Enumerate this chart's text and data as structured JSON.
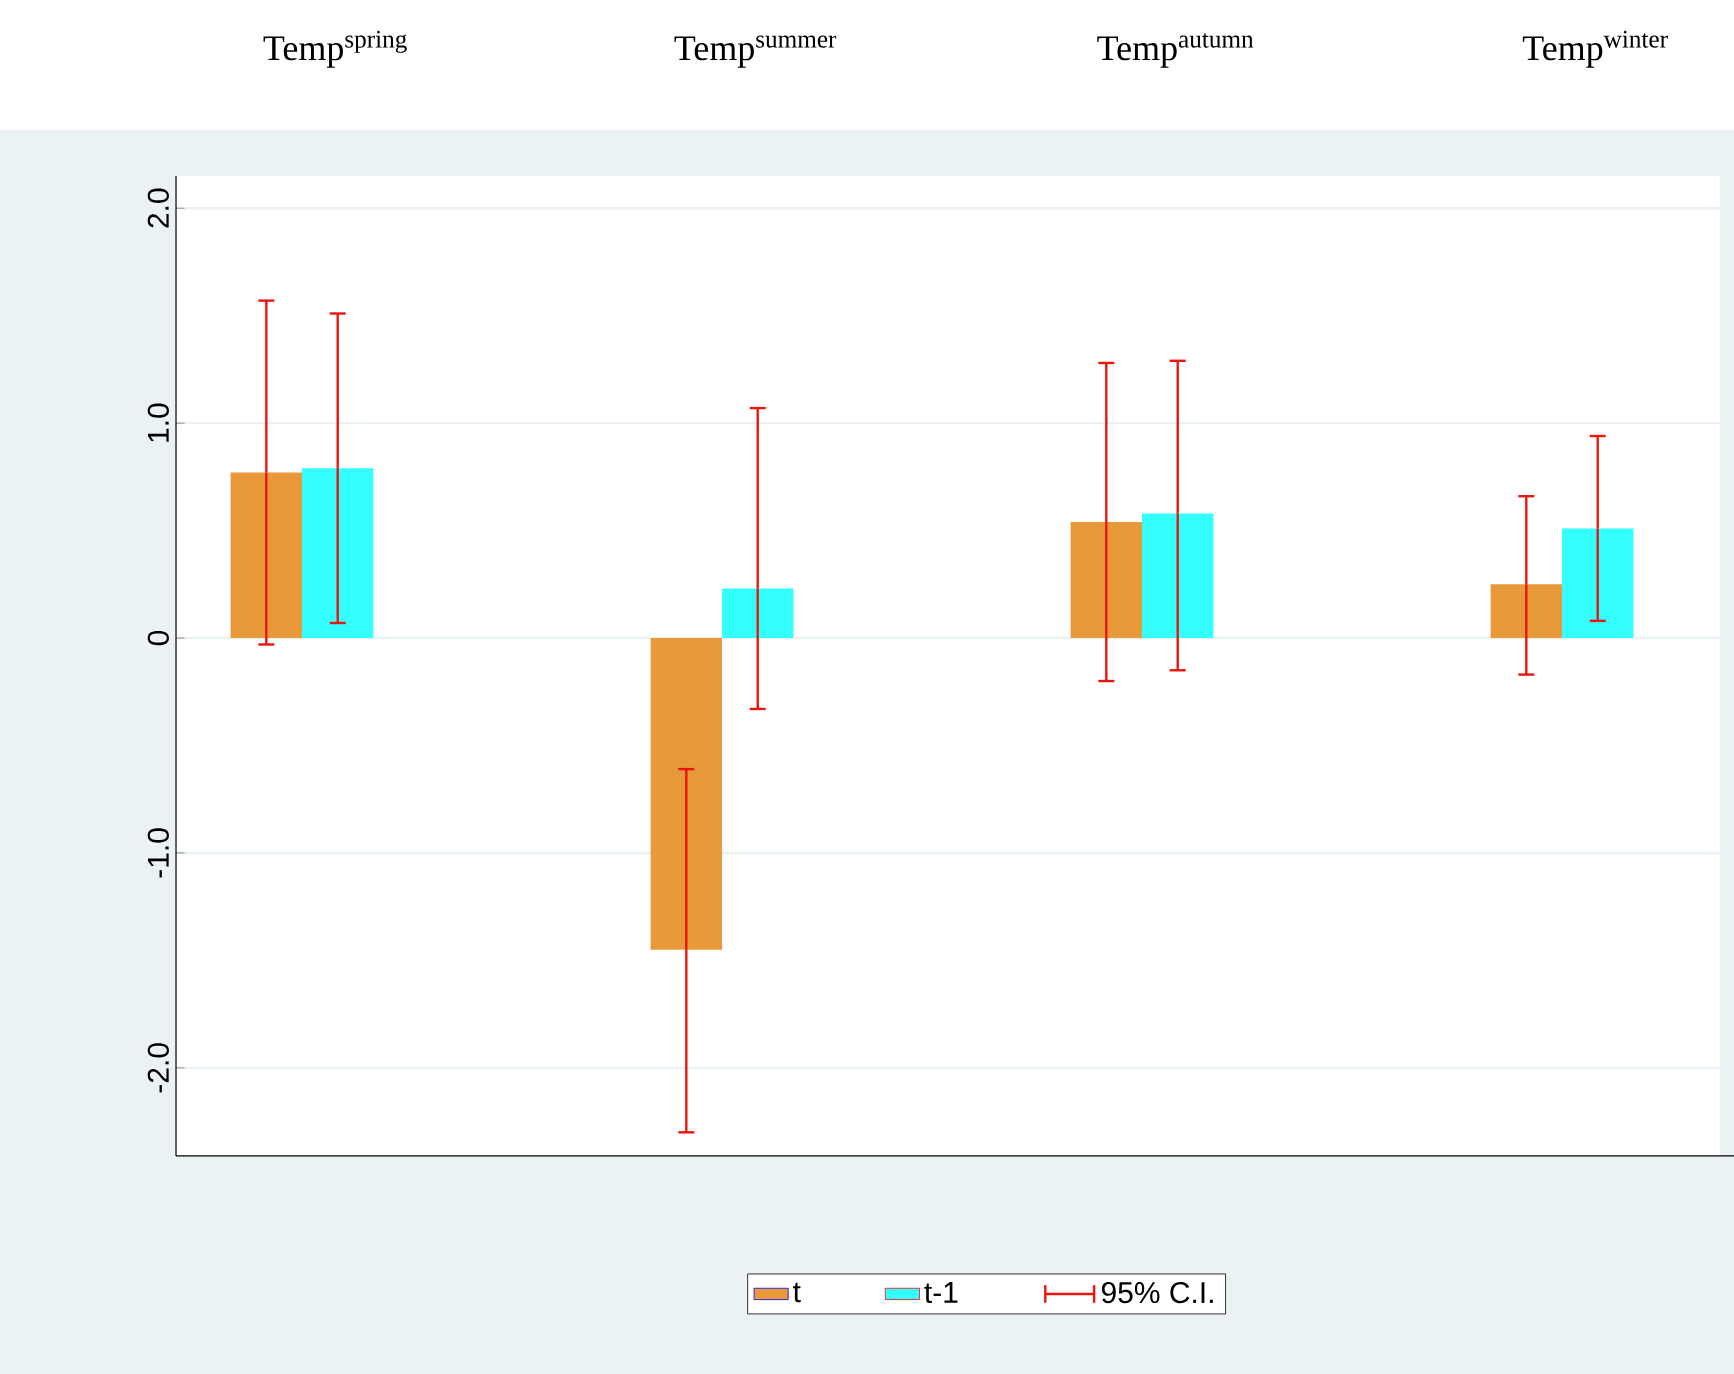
{
  "chart_data": {
    "type": "bar",
    "categories": [
      "Temp$^{spring}$",
      "Temp$^{summer}$",
      "Temp$^{autumn}$",
      "Temp$^{winter}$"
    ],
    "series": [
      {
        "name": "t",
        "color": "#e8993a",
        "values": [
          0.77,
          -1.45,
          0.54,
          0.25
        ],
        "errors": [
          [
            -0.03,
            1.57
          ],
          [
            -2.3,
            -0.61
          ],
          [
            -0.2,
            1.28
          ],
          [
            -0.17,
            0.66
          ]
        ]
      },
      {
        "name": "t-1",
        "color": "#33ffff",
        "values": [
          0.79,
          0.23,
          0.58,
          0.51
        ],
        "errors": [
          [
            0.07,
            1.51
          ],
          [
            -0.33,
            1.07
          ],
          [
            -0.15,
            1.29
          ],
          [
            0.08,
            0.94
          ]
        ]
      }
    ],
    "ylim": [
      -2.41,
      2.15
    ],
    "yticks": [
      {
        "value": -2,
        "label": "-2.0"
      },
      {
        "value": -1,
        "label": "-1.0"
      },
      0,
      {
        "value": 1,
        "label": "1.0"
      },
      {
        "value": 2,
        "label": "2.0"
      }
    ],
    "grid": "y",
    "legend": "bottom",
    "annotations": [
      "95% C.I."
    ]
  }
}
